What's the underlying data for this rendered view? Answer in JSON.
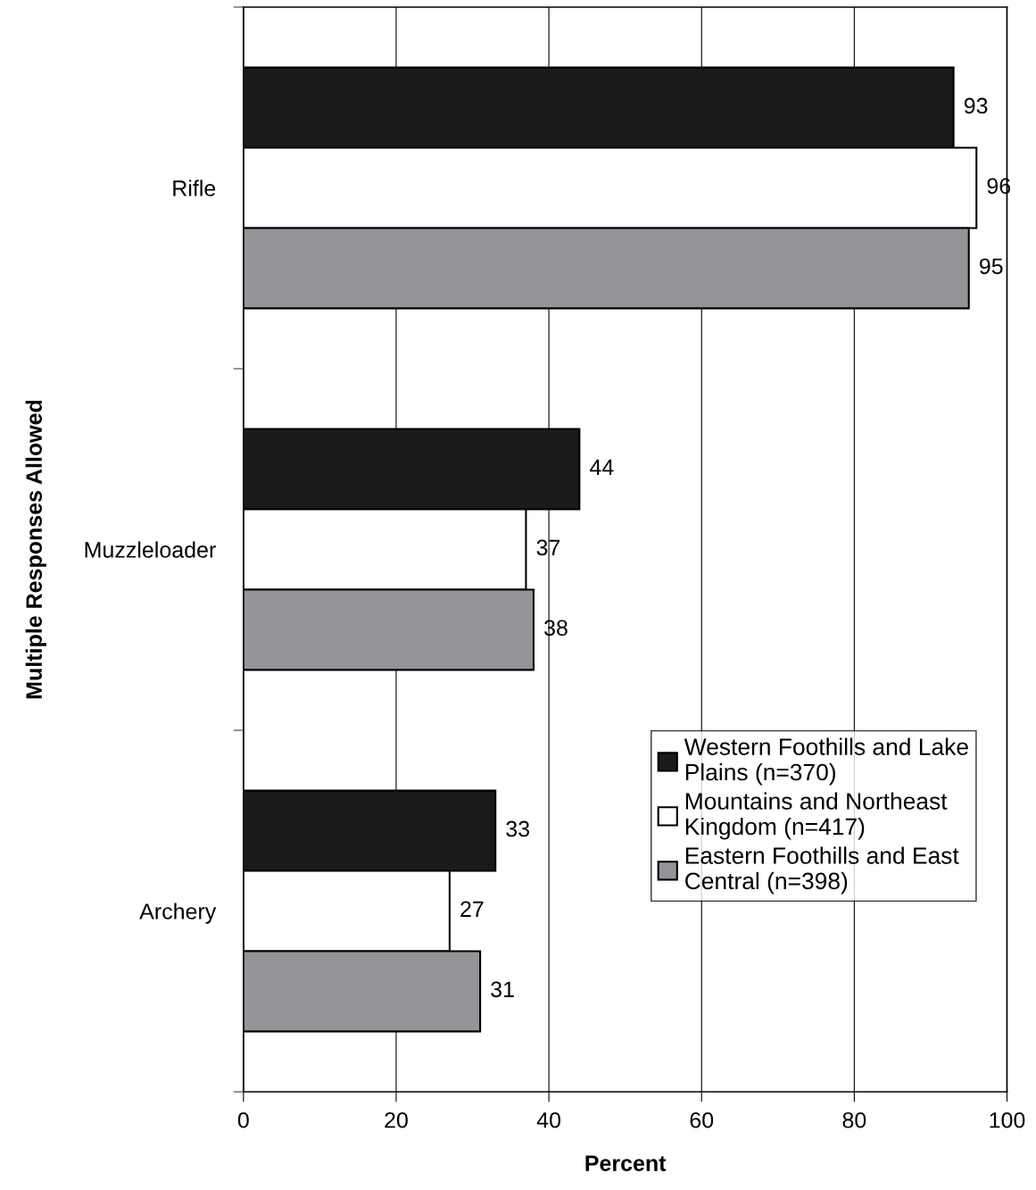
{
  "chart_data": {
    "type": "bar",
    "orientation": "horizontal",
    "xlabel": "Percent",
    "ylabel": "Multiple Responses Allowed",
    "categories": [
      "Rifle",
      "Muzzleloader",
      "Archery"
    ],
    "series": [
      {
        "name": "Western Foothills and Lake\nPlains (n=370)",
        "color": "#1a1a1a",
        "values": [
          93,
          44,
          33
        ]
      },
      {
        "name": "Mountains and Northeast\nKingdom (n=417)",
        "color": "#ffffff",
        "values": [
          96,
          37,
          27
        ]
      },
      {
        "name": "Eastern Foothills and East\nCentral (n=398)",
        "color": "#939598",
        "values": [
          95,
          38,
          31
        ]
      }
    ],
    "xlim": [
      0,
      100
    ],
    "xticks": [
      0,
      20,
      40,
      60,
      80,
      100
    ],
    "grid": "x",
    "legend": "bottom right",
    "data_labels": true
  }
}
